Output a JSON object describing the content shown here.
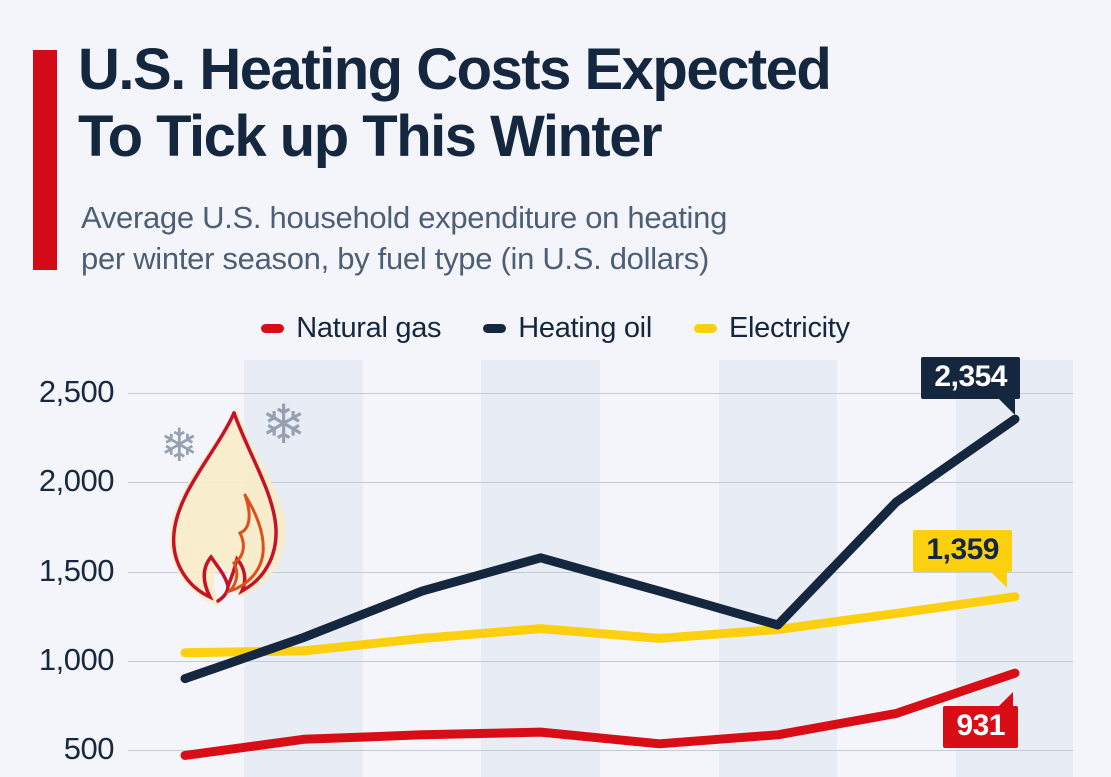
{
  "page": {
    "background": "#f3f5fa",
    "accent_bar_color": "#d30b16",
    "band_color_light": "#f3f5fa",
    "band_color_dark": "#e8ecf4",
    "gridline_color": "#c5cad5"
  },
  "header": {
    "title_line1": "U.S. Heating Costs Expected",
    "title_line2": "To Tick up This Winter",
    "subtitle_line1": "Average U.S. household expenditure on heating",
    "subtitle_line2": "per winter season, by fuel type (in U.S. dollars)"
  },
  "legend": {
    "items": [
      {
        "label": "Natural gas",
        "color": "#d90d15"
      },
      {
        "label": "Heating oil",
        "color": "#15273e"
      },
      {
        "label": "Electricity",
        "color": "#fdd00f"
      }
    ]
  },
  "icons": {
    "snowflake_glyph": "❄",
    "flame": "flame-icon"
  },
  "chart_data": {
    "type": "line",
    "title": "Average U.S. household expenditure on heating per winter season, by fuel type (in U.S. dollars)",
    "x_tick_labels_visible": false,
    "point_count": 8,
    "series": [
      {
        "name": "Natural gas",
        "color": "#d90d15",
        "values": [
          470,
          560,
          585,
          600,
          535,
          585,
          705,
          931
        ],
        "end_label": "931"
      },
      {
        "name": "Heating oil",
        "color": "#15273e",
        "values": [
          900,
          1130,
          1390,
          1577,
          1390,
          1200,
          1890,
          2354
        ],
        "end_label": "2,354"
      },
      {
        "name": "Electricity",
        "color": "#fdd00f",
        "values": [
          1045,
          1055,
          1125,
          1180,
          1125,
          1175,
          1265,
          1359
        ],
        "end_label": "1,359"
      }
    ],
    "y_axis": {
      "tick_labels": [
        "2,500",
        "2,000",
        "1,500",
        "1,000",
        "500"
      ],
      "tick_values": [
        2500,
        2000,
        1500,
        1000,
        500
      ]
    },
    "grid": true,
    "legend_position": "top",
    "background_bands": "alternating vertical bands per data point"
  }
}
